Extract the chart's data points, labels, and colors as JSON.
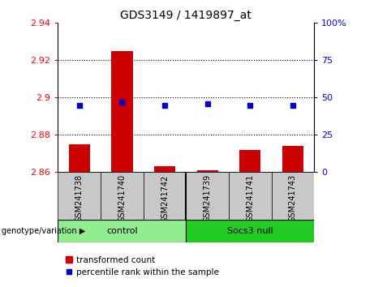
{
  "title": "GDS3149 / 1419897_at",
  "samples": [
    "GSM241738",
    "GSM241740",
    "GSM241742",
    "GSM241739",
    "GSM241741",
    "GSM241743"
  ],
  "red_values": [
    2.875,
    2.925,
    2.863,
    2.861,
    2.872,
    2.874
  ],
  "blue_values": [
    45,
    47,
    45,
    46,
    45,
    45
  ],
  "ylim_left": [
    2.86,
    2.94
  ],
  "ylim_right": [
    0,
    100
  ],
  "yticks_left": [
    2.86,
    2.88,
    2.9,
    2.92,
    2.94
  ],
  "yticks_right": [
    0,
    25,
    50,
    75,
    100
  ],
  "groups": [
    {
      "label": "control",
      "indices": [
        0,
        1,
        2
      ],
      "color": "#90EE90"
    },
    {
      "label": "Socs3 null",
      "indices": [
        3,
        4,
        5
      ],
      "color": "#22CC22"
    }
  ],
  "bar_color": "#CC0000",
  "dot_color": "#0000CC",
  "bar_width": 0.5,
  "bg_color": "#FFFFFF",
  "plot_bg": "#FFFFFF",
  "sample_box_color": "#C8C8C8",
  "legend_red_label": "transformed count",
  "legend_blue_label": "percentile rank within the sample",
  "group_label": "genotype/variation"
}
